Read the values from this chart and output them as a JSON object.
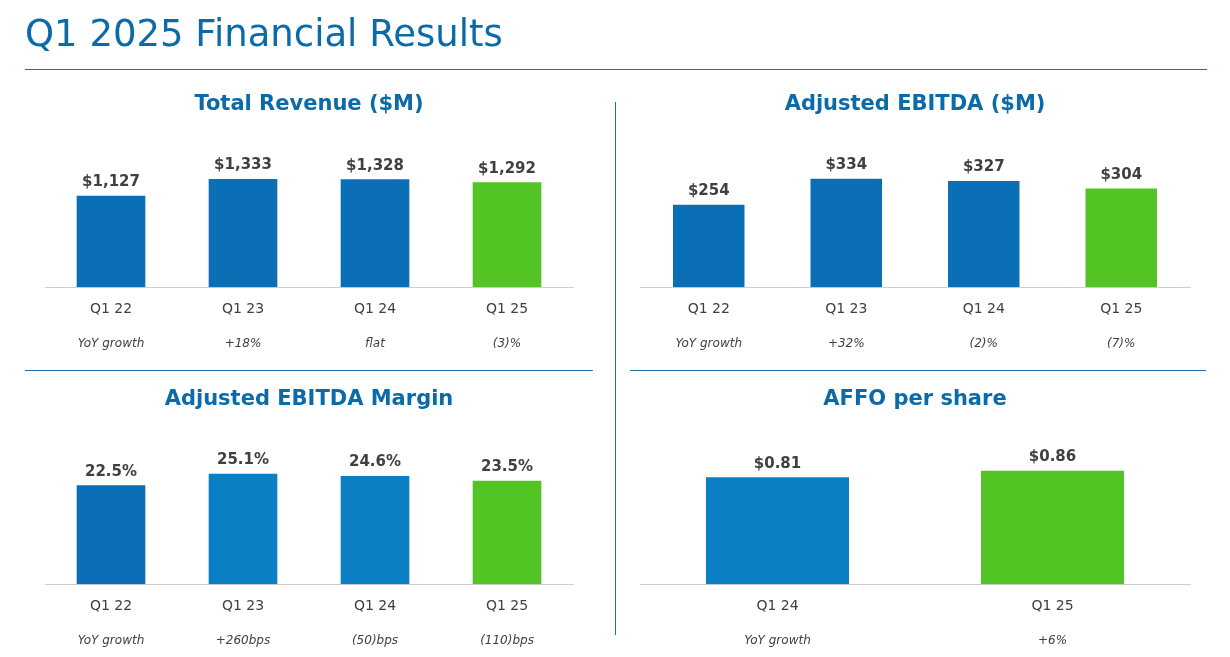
{
  "chart_data": [
    {
      "type": "other",
      "title": "Q1 2025 Financial Results"
    },
    {
      "type": "bar",
      "title": "Total Revenue ($M)",
      "categories": [
        "Q1 22",
        "Q1 23",
        "Q1 24",
        "Q1 25"
      ],
      "values": [
        1127,
        1333,
        1328,
        1292
      ],
      "value_labels": [
        "$1,127",
        "$1,333",
        "$1,328",
        "$1,292"
      ],
      "colors": [
        "#0a6fb6",
        "#0a6fb6",
        "#0a6fb6",
        "#52c424"
      ],
      "tick_labels": "x",
      "grid": false,
      "legend": false,
      "annotations": [
        "YoY growth",
        "+18%",
        "flat",
        "(3)%"
      ]
    },
    {
      "type": "bar",
      "title": "Adjusted EBITDA ($M)",
      "categories": [
        "Q1 22",
        "Q1 23",
        "Q1 24",
        "Q1 25"
      ],
      "values": [
        254,
        334,
        327,
        304
      ],
      "value_labels": [
        "$254",
        "$334",
        "$327",
        "$304"
      ],
      "colors": [
        "#0a6fb6",
        "#0a6fb6",
        "#0a6fb6",
        "#52c424"
      ],
      "tick_labels": "x",
      "grid": false,
      "legend": false,
      "annotations": [
        "YoY growth",
        "+32%",
        "(2)%",
        "(7)%"
      ]
    },
    {
      "type": "bar",
      "title": "Adjusted EBITDA Margin",
      "categories": [
        "Q1 22",
        "Q1 23",
        "Q1 24",
        "Q1 25"
      ],
      "values": [
        22.5,
        25.1,
        24.6,
        23.5
      ],
      "value_labels": [
        "22.5%",
        "25.1%",
        "24.6%",
        "23.5%"
      ],
      "colors": [
        "#0a6fb6",
        "#0a7fc4",
        "#0a7fc4",
        "#52c424"
      ],
      "tick_labels": "x",
      "grid": false,
      "legend": false,
      "annotations": [
        "YoY growth",
        "+260bps",
        "(50)bps",
        "(110)bps"
      ]
    },
    {
      "type": "bar",
      "title": "AFFO per share",
      "categories": [
        "Q1 24",
        "Q1 25"
      ],
      "values": [
        0.81,
        0.86
      ],
      "value_labels": [
        "$0.81",
        "$0.86"
      ],
      "colors": [
        "#0a7fc4",
        "#52c424"
      ],
      "tick_labels": "x",
      "grid": false,
      "legend": false,
      "annotations": [
        "YoY growth",
        "+6%"
      ]
    }
  ]
}
